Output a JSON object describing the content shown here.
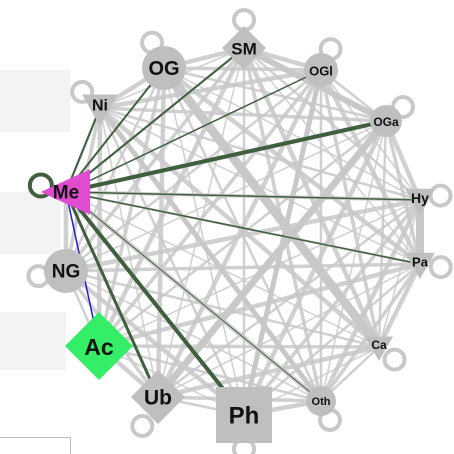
{
  "network": {
    "colors": {
      "edge_gray": "#c8c8c8",
      "edge_green": "#3f5f3f",
      "edge_blue": "#1f1fe0",
      "node_gray": "#bfbfbf",
      "node_me": "#e04ccf",
      "node_ac": "#33ee66"
    },
    "nodes": [
      {
        "id": "SM",
        "label": "SM",
        "shape": "diamond",
        "color": "gray"
      },
      {
        "id": "OGl",
        "label": "OGl",
        "shape": "circle",
        "color": "gray"
      },
      {
        "id": "OGa",
        "label": "OGa",
        "shape": "circle",
        "color": "gray"
      },
      {
        "id": "Hy",
        "label": "Hy",
        "shape": "triangle",
        "color": "gray"
      },
      {
        "id": "Pa",
        "label": "Pa",
        "shape": "triangle",
        "color": "gray"
      },
      {
        "id": "Ca",
        "label": "Ca",
        "shape": "triangle",
        "color": "gray"
      },
      {
        "id": "Oth",
        "label": "Oth",
        "shape": "circle",
        "color": "gray"
      },
      {
        "id": "Ph",
        "label": "Ph",
        "shape": "square",
        "color": "gray"
      },
      {
        "id": "Ub",
        "label": "Ub",
        "shape": "diamond",
        "color": "gray"
      },
      {
        "id": "Ac",
        "label": "Ac",
        "shape": "diamond",
        "color": "green"
      },
      {
        "id": "NG",
        "label": "NG",
        "shape": "circle",
        "color": "gray"
      },
      {
        "id": "Me",
        "label": "Me",
        "shape": "triangle-left",
        "color": "magenta"
      },
      {
        "id": "Ni",
        "label": "Ni",
        "shape": "triangle",
        "color": "gray"
      },
      {
        "id": "OG",
        "label": "OG",
        "shape": "circle",
        "color": "gray"
      }
    ],
    "highlighted_edges": [
      {
        "from": "Me",
        "to": "OG",
        "color": "green",
        "weight": 2
      },
      {
        "from": "Me",
        "to": "SM",
        "color": "green",
        "weight": 2
      },
      {
        "from": "Me",
        "to": "OGl",
        "color": "green",
        "weight": 1.5
      },
      {
        "from": "Me",
        "to": "OGa",
        "color": "green",
        "weight": 4
      },
      {
        "from": "Me",
        "to": "Hy",
        "color": "green",
        "weight": 1.5
      },
      {
        "from": "Me",
        "to": "Pa",
        "color": "green",
        "weight": 1.5
      },
      {
        "from": "Me",
        "to": "Oth",
        "color": "green",
        "weight": 1
      },
      {
        "from": "Me",
        "to": "Ph",
        "color": "green",
        "weight": 4
      },
      {
        "from": "Me",
        "to": "Ub",
        "color": "green",
        "weight": 3
      },
      {
        "from": "Me",
        "to": "Ni",
        "color": "green",
        "weight": 2
      },
      {
        "from": "Me",
        "to": "Ac",
        "color": "blue",
        "weight": 1.5
      }
    ],
    "thick_gray_edges": [
      {
        "from": "OG",
        "to": "Ca",
        "weight": 9
      },
      {
        "from": "OGa",
        "to": "Ub",
        "weight": 7
      },
      {
        "from": "SM",
        "to": "OGa",
        "weight": 6
      },
      {
        "from": "Hy",
        "to": "Pa",
        "weight": 8
      },
      {
        "from": "OGl",
        "to": "Ph",
        "weight": 5
      },
      {
        "from": "Ni",
        "to": "Oth",
        "weight": 5
      }
    ],
    "self_loops": [
      "SM",
      "OGl",
      "OGa",
      "Hy",
      "Pa",
      "Ca",
      "Oth",
      "Ph",
      "Ub",
      "NG",
      "Ni",
      "OG",
      "Me"
    ]
  }
}
